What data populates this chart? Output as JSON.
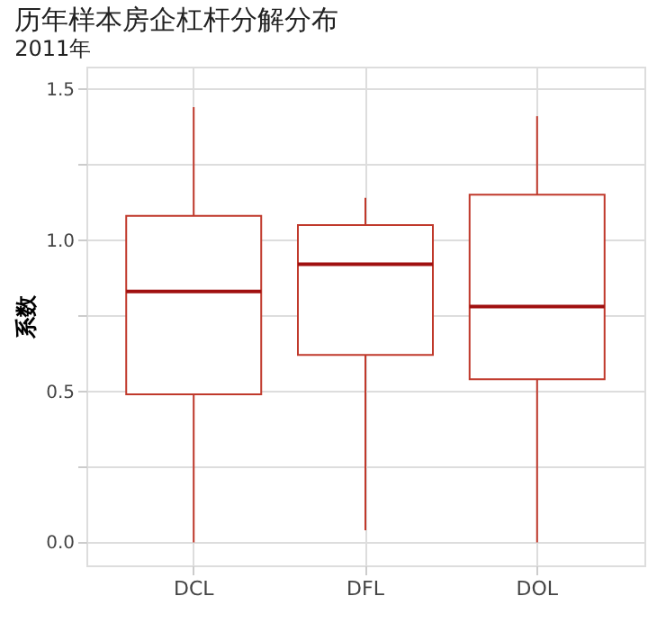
{
  "chart_data": {
    "type": "box",
    "title": "历年样本房企杠杆分解分布",
    "subtitle": "2011年",
    "ylabel": "系数",
    "categories": [
      "DCL",
      "DFL",
      "DOL"
    ],
    "boxes": [
      {
        "low": 0.0,
        "q1": 0.49,
        "median": 0.83,
        "q3": 1.08,
        "high": 1.44
      },
      {
        "low": 0.04,
        "q1": 0.62,
        "median": 0.92,
        "q3": 1.05,
        "high": 1.14
      },
      {
        "low": 0.0,
        "q1": 0.54,
        "median": 0.78,
        "q3": 1.15,
        "high": 1.41
      }
    ],
    "color": "#c0392b",
    "ylim": [
      -0.076,
      1.574
    ],
    "yticks": [
      {
        "value": 0,
        "label": "0.0"
      },
      {
        "value": 0.25,
        "label": null
      },
      0.5,
      {
        "value": 0.75,
        "label": null
      },
      {
        "value": 1.0,
        "label": "1.0"
      },
      {
        "value": 1.25,
        "label": null
      },
      1.5
    ],
    "grid": true
  }
}
